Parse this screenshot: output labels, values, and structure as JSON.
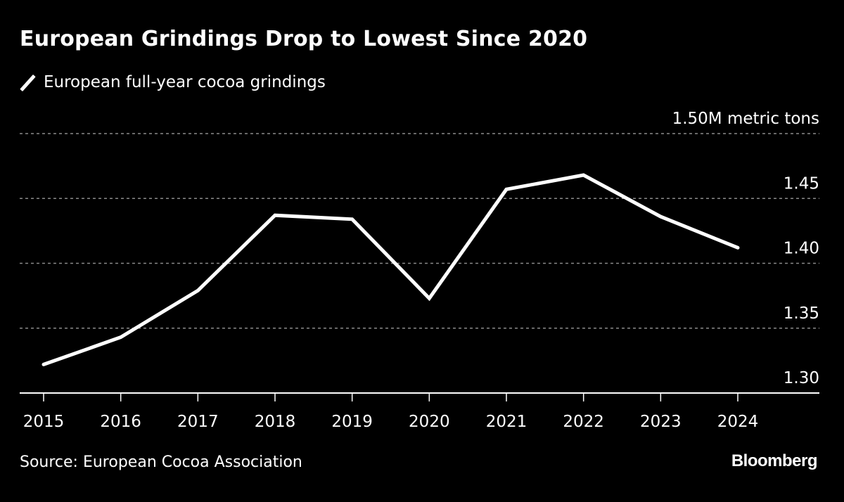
{
  "title": "European Grindings Drop to Lowest Since 2020",
  "legend": {
    "label": "European full-year cocoa grindings",
    "icon": "line-swatch-icon"
  },
  "source": "Source: European Cocoa Association",
  "brand": "Bloomberg",
  "colors": {
    "background": "#000000",
    "line": "#ffffff",
    "grid": "#8a8a8a",
    "text": "#ffffff"
  },
  "chart_data": {
    "type": "line",
    "title": "European Grindings Drop to Lowest Since 2020",
    "xlabel": "",
    "ylabel": "M metric tons",
    "unit_label": "1.50M metric tons",
    "x": [
      "2015",
      "2016",
      "2017",
      "2018",
      "2019",
      "2020",
      "2021",
      "2022",
      "2023",
      "2024"
    ],
    "series": [
      {
        "name": "European full-year cocoa grindings",
        "values": [
          1.322,
          1.343,
          1.379,
          1.437,
          1.434,
          1.373,
          1.457,
          1.468,
          1.436,
          1.412
        ]
      }
    ],
    "ylim": [
      1.3,
      1.5
    ],
    "yticks": [
      1.3,
      1.35,
      1.4,
      1.45,
      1.5
    ],
    "ytick_labels": [
      "1.30",
      "1.35",
      "1.40",
      "1.45",
      "1.50M metric tons"
    ],
    "grid": true,
    "y_axis_side": "right",
    "legend_position": "top-left"
  }
}
